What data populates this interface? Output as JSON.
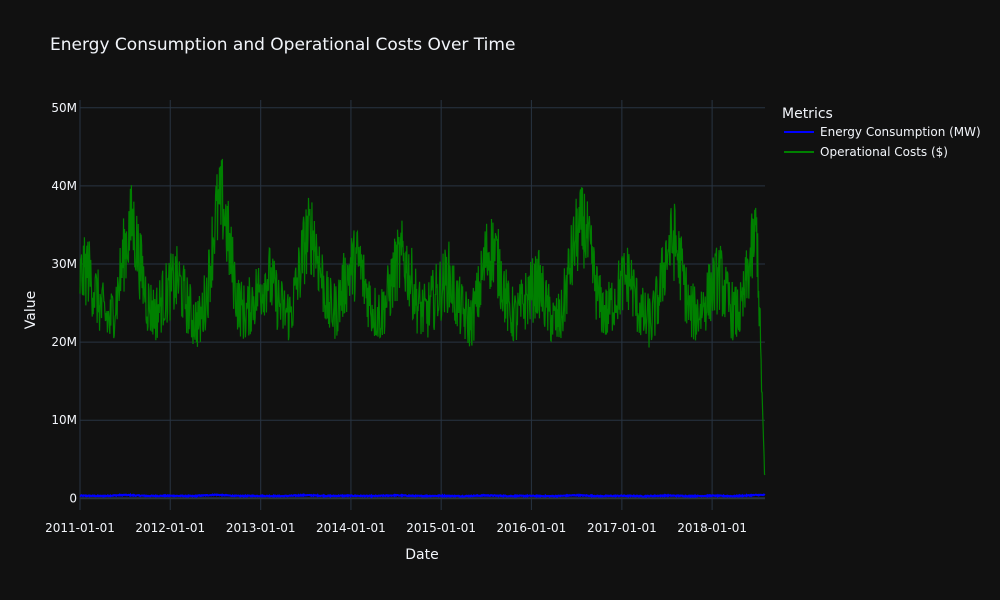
{
  "chart_data": {
    "type": "line",
    "title": "Energy Consumption and Operational Costs Over Time",
    "xlabel": "Date",
    "ylabel": "Value",
    "x_tick_labels": [
      "2011-01-01",
      "2012-01-01",
      "2013-01-01",
      "2014-01-01",
      "2015-01-01",
      "2016-01-01",
      "2017-01-01",
      "2018-01-01"
    ],
    "x_range": [
      "2011-01-01",
      "2018-08-03"
    ],
    "y_tick_values": [
      0,
      10000000,
      20000000,
      30000000,
      40000000,
      50000000
    ],
    "y_tick_labels": [
      "0",
      "10M",
      "20M",
      "30M",
      "40M",
      "50M"
    ],
    "ylim": [
      -1500000,
      51000000
    ],
    "legend_title": "Metrics",
    "legend_position": "top-right",
    "series": [
      {
        "name": "Energy Consumption (MW)",
        "color": "#0000ff",
        "dates": [
          "2011-01",
          "2011-04",
          "2011-07",
          "2011-10",
          "2012-01",
          "2012-04",
          "2012-07",
          "2012-10",
          "2013-01",
          "2013-04",
          "2013-07",
          "2013-10",
          "2014-01",
          "2014-04",
          "2014-07",
          "2014-10",
          "2015-01",
          "2015-04",
          "2015-07",
          "2015-10",
          "2016-01",
          "2016-04",
          "2016-07",
          "2016-10",
          "2017-01",
          "2017-04",
          "2017-07",
          "2017-10",
          "2018-01",
          "2018-04",
          "2018-07"
        ],
        "values": [
          330000,
          290000,
          420000,
          300000,
          320000,
          280000,
          450000,
          290000,
          310000,
          280000,
          400000,
          300000,
          330000,
          280000,
          380000,
          290000,
          320000,
          270000,
          370000,
          290000,
          310000,
          270000,
          390000,
          280000,
          320000,
          270000,
          350000,
          280000,
          330000,
          270000,
          420000
        ]
      },
      {
        "name": "Operational Costs ($)",
        "color": "#008000",
        "dates": [
          "2011-01",
          "2011-02",
          "2011-03",
          "2011-04",
          "2011-05",
          "2011-06",
          "2011-07",
          "2011-08",
          "2011-09",
          "2011-10",
          "2011-11",
          "2011-12",
          "2012-01",
          "2012-02",
          "2012-03",
          "2012-04",
          "2012-05",
          "2012-06",
          "2012-07",
          "2012-08",
          "2012-09",
          "2012-10",
          "2012-11",
          "2012-12",
          "2013-01",
          "2013-02",
          "2013-03",
          "2013-04",
          "2013-05",
          "2013-06",
          "2013-07",
          "2013-08",
          "2013-09",
          "2013-10",
          "2013-11",
          "2013-12",
          "2014-01",
          "2014-02",
          "2014-03",
          "2014-04",
          "2014-05",
          "2014-06",
          "2014-07",
          "2014-08",
          "2014-09",
          "2014-10",
          "2014-11",
          "2014-12",
          "2015-01",
          "2015-02",
          "2015-03",
          "2015-04",
          "2015-05",
          "2015-06",
          "2015-07",
          "2015-08",
          "2015-09",
          "2015-10",
          "2015-11",
          "2015-12",
          "2016-01",
          "2016-02",
          "2016-03",
          "2016-04",
          "2016-05",
          "2016-06",
          "2016-07",
          "2016-08",
          "2016-09",
          "2016-10",
          "2016-11",
          "2016-12",
          "2017-01",
          "2017-02",
          "2017-03",
          "2017-04",
          "2017-05",
          "2017-06",
          "2017-07",
          "2017-08",
          "2017-09",
          "2017-10",
          "2017-11",
          "2017-12",
          "2018-01",
          "2018-02",
          "2018-03",
          "2018-04",
          "2018-05",
          "2018-06",
          "2018-07",
          "2018-08"
        ],
        "values": [
          28000000,
          29500000,
          26500000,
          24000000,
          22500000,
          26000000,
          32000000,
          35500000,
          30000000,
          25000000,
          23500000,
          25500000,
          27000000,
          28000000,
          25500000,
          23000000,
          22500000,
          27000000,
          36000000,
          38000000,
          31000000,
          25000000,
          23500000,
          25500000,
          27000000,
          28500000,
          26000000,
          24000000,
          23500000,
          28000000,
          33000000,
          34000000,
          29000000,
          24500000,
          24000000,
          27000000,
          29500000,
          30500000,
          27000000,
          24000000,
          23500000,
          26000000,
          29500000,
          31000000,
          28000000,
          24500000,
          23500000,
          25500000,
          27000000,
          28500000,
          25500000,
          23500000,
          22500000,
          26000000,
          31000000,
          32000000,
          28500000,
          24000000,
          23000000,
          25000000,
          26500000,
          27500000,
          24500000,
          22500000,
          23000000,
          29000000,
          33500000,
          35000000,
          30000000,
          25000000,
          23500000,
          25500000,
          27500000,
          28500000,
          25000000,
          23000000,
          22500000,
          26000000,
          31500000,
          33000000,
          29000000,
          24000000,
          23500000,
          25000000,
          27000000,
          28500000,
          25500000,
          23500000,
          24000000,
          30000000,
          34500000,
          3000000
        ]
      }
    ]
  }
}
